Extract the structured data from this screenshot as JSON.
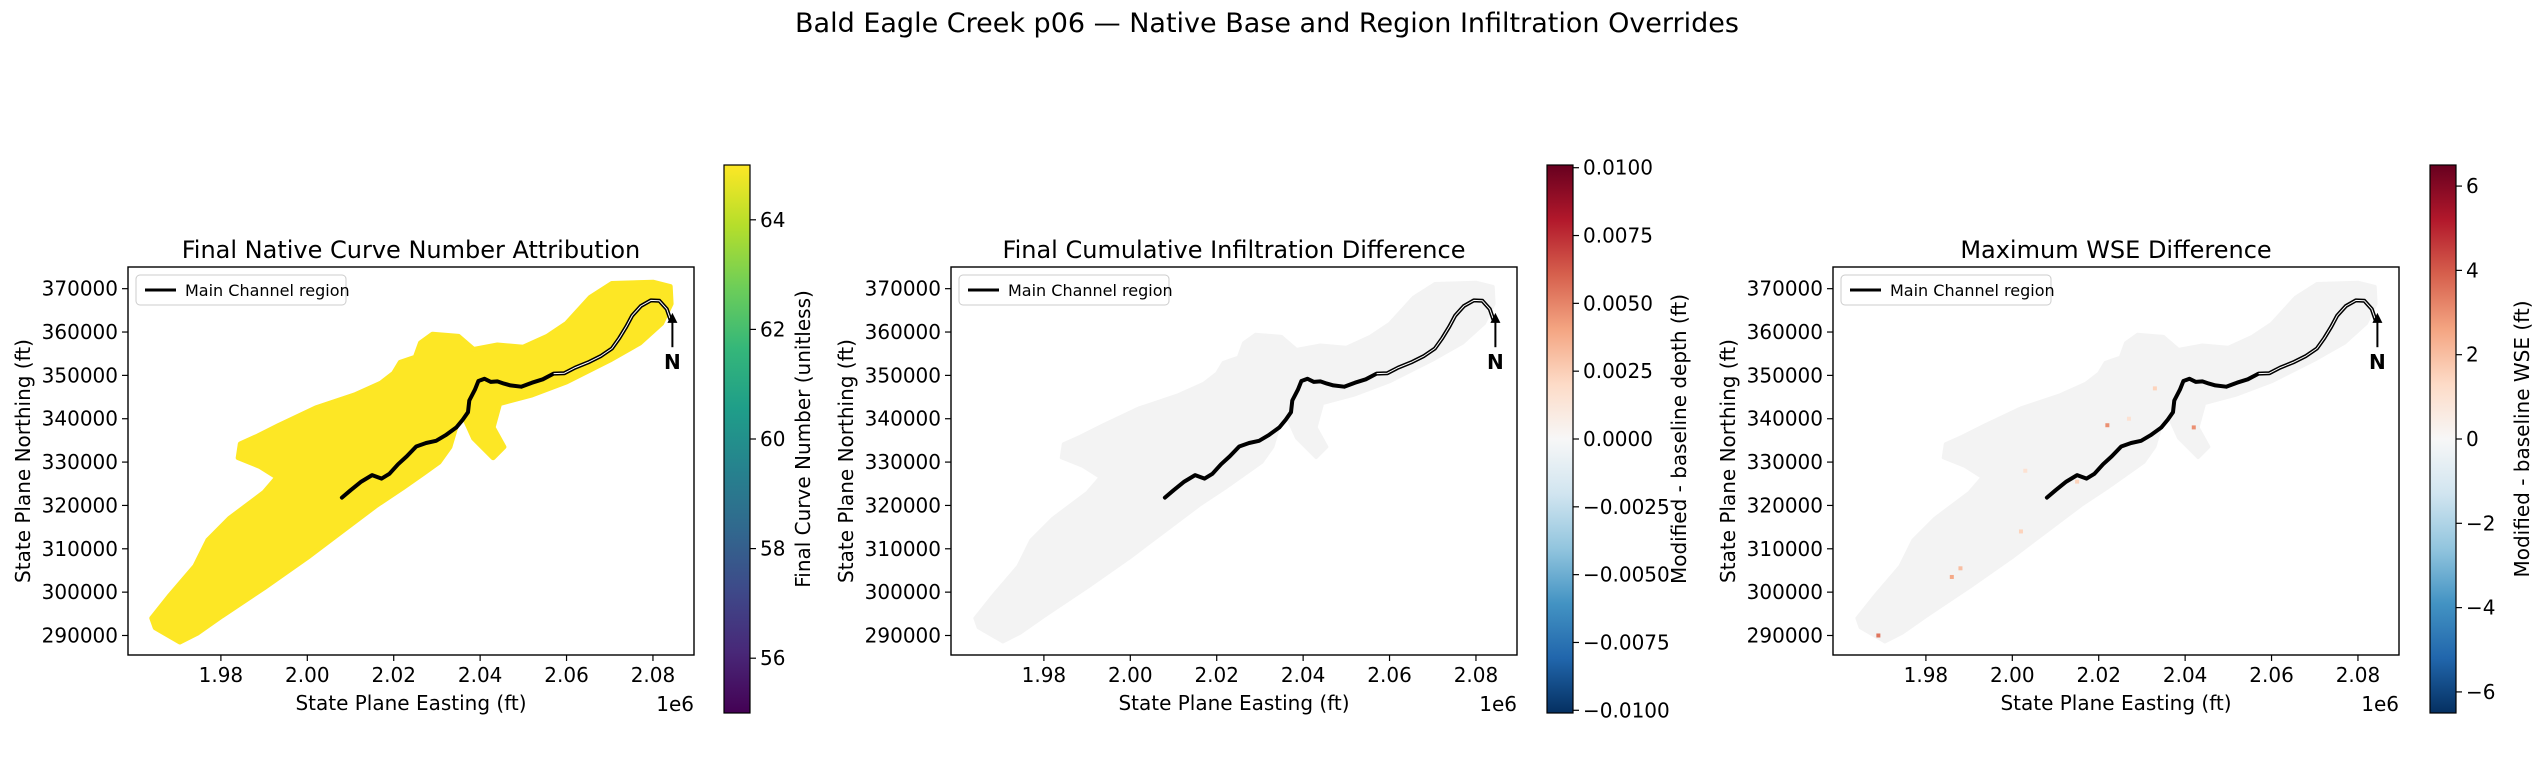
{
  "figure": {
    "title": "Bald Eagle Creek p06 — Native Base and Region Infiltration Overrides"
  },
  "chart_data": [
    {
      "type": "heatmap",
      "title": "Final Native Curve Number Attribution",
      "xlabel": "State Plane Easting (ft)",
      "ylabel": "State Plane Northing (ft)",
      "x_offset_label": "1e6",
      "xlim": [
        1.9585,
        2.0895
      ],
      "ylim": [
        285500,
        375000
      ],
      "xticks": [
        1.98,
        2.0,
        2.02,
        2.04,
        2.06,
        2.08
      ],
      "xtick_labels": [
        "1.98",
        "2.00",
        "2.02",
        "2.04",
        "2.06",
        "2.08"
      ],
      "yticks": [
        290000,
        300000,
        310000,
        320000,
        330000,
        340000,
        350000,
        360000,
        370000
      ],
      "ytick_labels": [
        "290000",
        "300000",
        "310000",
        "320000",
        "330000",
        "340000",
        "350000",
        "360000",
        "370000"
      ],
      "legend": {
        "label": "Main Channel region",
        "placement": "upper-left"
      },
      "north_arrow": "N",
      "colorbar": {
        "label": "Final Curve Number (unitless)",
        "colormap": "viridis",
        "range": [
          55,
          65
        ],
        "ticks": [
          56,
          58,
          60,
          62,
          64
        ],
        "tick_labels": [
          "56",
          "58",
          "60",
          "62",
          "64"
        ]
      },
      "fill_value": 65,
      "fill_color": "#fde725"
    },
    {
      "type": "heatmap",
      "title": "Final Cumulative Infiltration Difference",
      "xlabel": "State Plane Easting (ft)",
      "ylabel": "State Plane Northing (ft)",
      "x_offset_label": "1e6",
      "xlim": [
        1.9585,
        2.0895
      ],
      "ylim": [
        285500,
        375000
      ],
      "xticks": [
        1.98,
        2.0,
        2.02,
        2.04,
        2.06,
        2.08
      ],
      "xtick_labels": [
        "1.98",
        "2.00",
        "2.02",
        "2.04",
        "2.06",
        "2.08"
      ],
      "yticks": [
        290000,
        300000,
        310000,
        320000,
        330000,
        340000,
        350000,
        360000,
        370000
      ],
      "ytick_labels": [
        "290000",
        "300000",
        "310000",
        "320000",
        "330000",
        "340000",
        "350000",
        "360000",
        "370000"
      ],
      "legend": {
        "label": "Main Channel region",
        "placement": "upper-left"
      },
      "north_arrow": "N",
      "colorbar": {
        "label": "Modified - baseline depth (ft)",
        "colormap": "RdBu_r",
        "range": [
          -0.0101,
          0.0101
        ],
        "ticks": [
          -0.01,
          -0.0075,
          -0.005,
          -0.0025,
          0,
          0.0025,
          0.005,
          0.0075,
          0.01
        ],
        "tick_labels": [
          "−0.0100",
          "−0.0075",
          "−0.0050",
          "−0.0025",
          "0.0000",
          "0.0025",
          "0.0050",
          "0.0075",
          "0.0100"
        ]
      },
      "fill_value": 0,
      "fill_color": "#f3f3f3"
    },
    {
      "type": "heatmap",
      "title": "Maximum WSE Difference",
      "xlabel": "State Plane Easting (ft)",
      "ylabel": "State Plane Northing (ft)",
      "x_offset_label": "1e6",
      "xlim": [
        1.9585,
        2.0895
      ],
      "ylim": [
        285500,
        375000
      ],
      "xticks": [
        1.98,
        2.0,
        2.02,
        2.04,
        2.06,
        2.08
      ],
      "xtick_labels": [
        "1.98",
        "2.00",
        "2.02",
        "2.04",
        "2.06",
        "2.08"
      ],
      "yticks": [
        290000,
        300000,
        310000,
        320000,
        330000,
        340000,
        350000,
        360000,
        370000
      ],
      "ytick_labels": [
        "290000",
        "300000",
        "310000",
        "320000",
        "330000",
        "340000",
        "350000",
        "360000",
        "370000"
      ],
      "legend": {
        "label": "Main Channel region",
        "placement": "upper-left"
      },
      "north_arrow": "N",
      "colorbar": {
        "label": "Modified - baseline WSE (ft)",
        "colormap": "RdBu_r",
        "range": [
          -6.5,
          6.5
        ],
        "ticks": [
          -6,
          -4,
          -2,
          0,
          2,
          4,
          6
        ],
        "tick_labels": [
          "−6",
          "−4",
          "−2",
          "0",
          "2",
          "4",
          "6"
        ]
      },
      "fill_value": 0,
      "fill_color": "#f3f3f3",
      "scattered_differences": [
        {
          "x": 1.969,
          "y": 290000,
          "v": 3.5
        },
        {
          "x": 1.986,
          "y": 303500,
          "v": 2.5
        },
        {
          "x": 1.988,
          "y": 305500,
          "v": 2.0
        },
        {
          "x": 2.022,
          "y": 338500,
          "v": 3.0
        },
        {
          "x": 2.042,
          "y": 338000,
          "v": 3.0
        },
        {
          "x": 2.015,
          "y": 325500,
          "v": 1.5
        },
        {
          "x": 2.033,
          "y": 347000,
          "v": 1.5
        },
        {
          "x": 2.003,
          "y": 328000,
          "v": 1.0
        },
        {
          "x": 2.002,
          "y": 314000,
          "v": 1.5
        },
        {
          "x": 2.027,
          "y": 340000,
          "v": 1.0
        }
      ]
    }
  ]
}
